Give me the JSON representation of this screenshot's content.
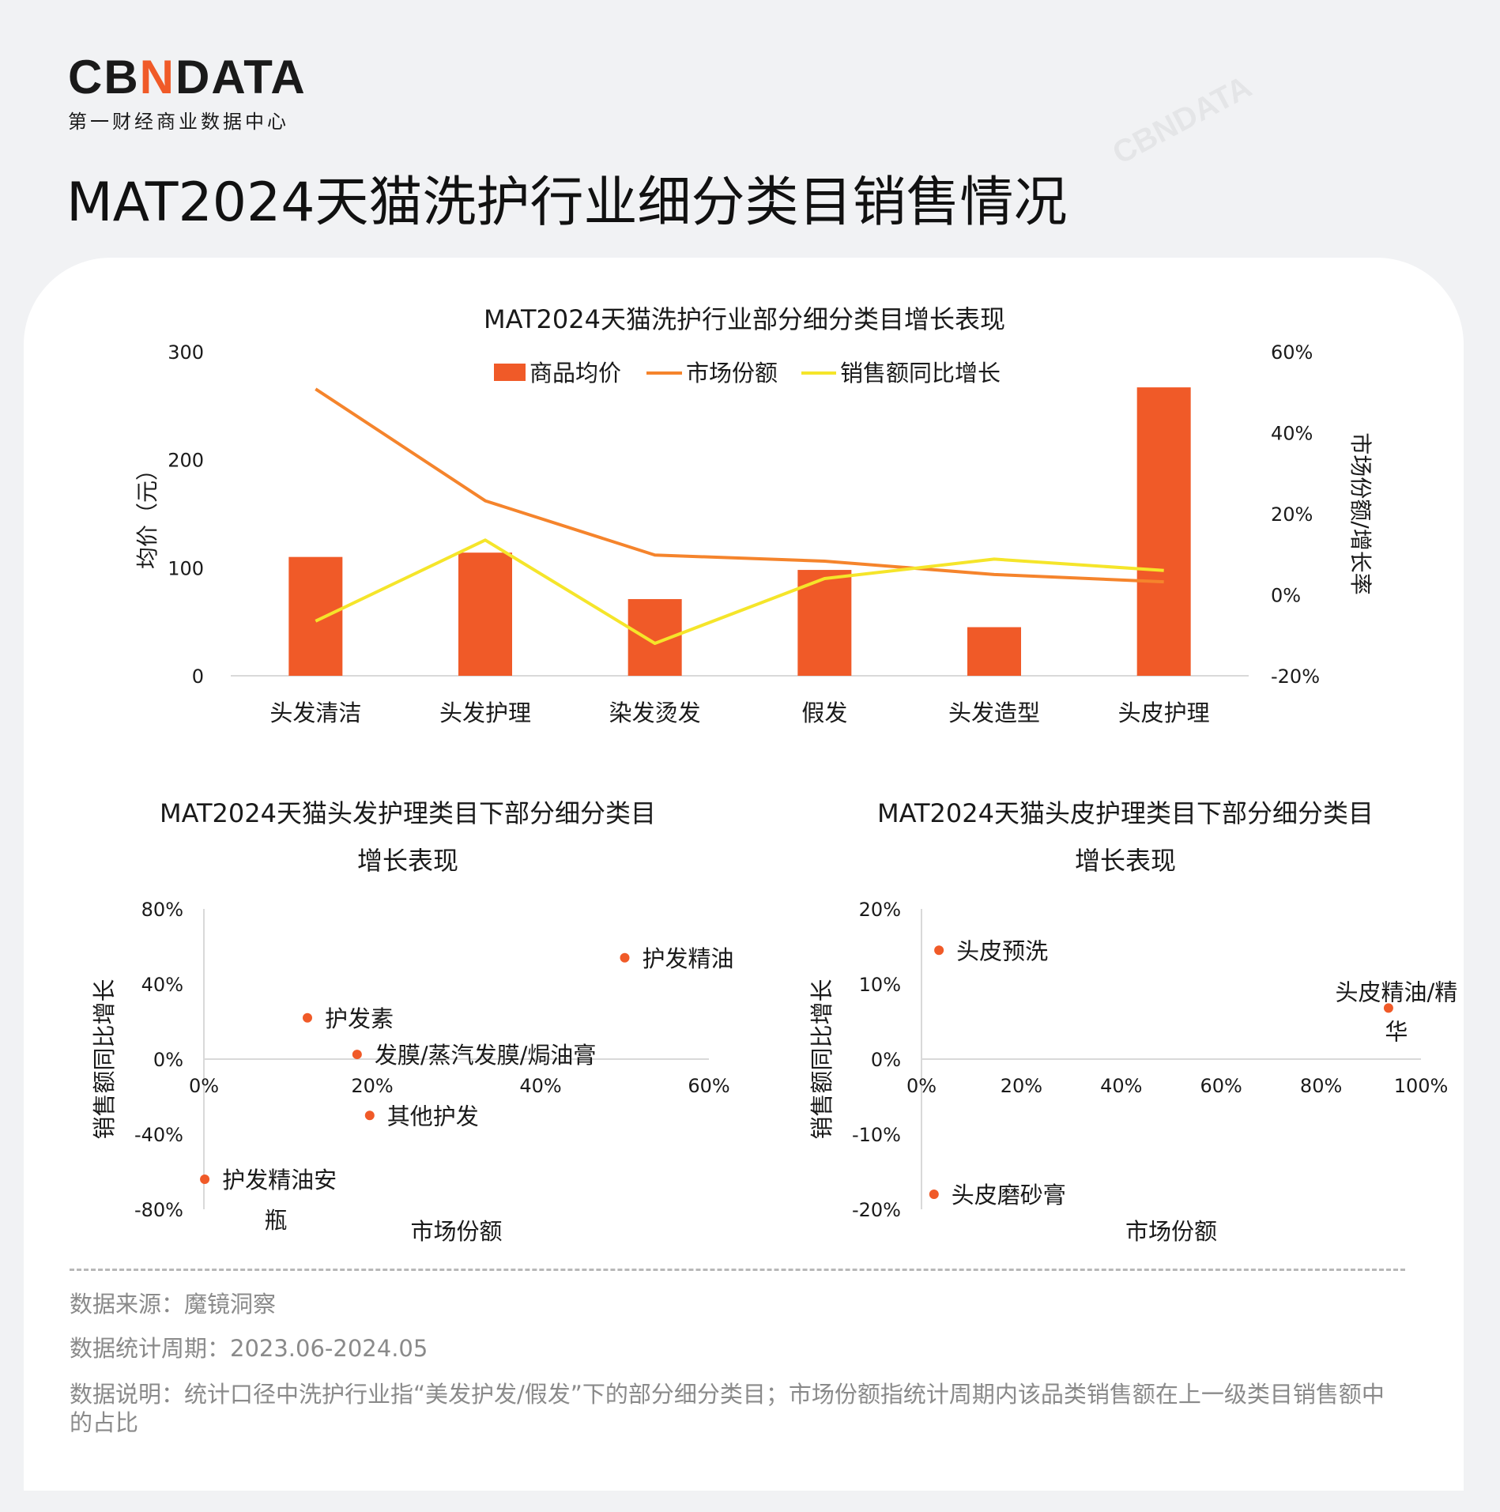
{
  "brand": {
    "logo_pre": "CB",
    "logo_x": "N",
    "logo_post": "DATA",
    "logo_sub": "第一财经商业数据中心",
    "watermark": "CBNDATA"
  },
  "page_title": "MAT2024天猫洗护行业细分类目销售情况",
  "colors": {
    "bar": "#f05a28",
    "share_line": "#f5842c",
    "growth_line": "#f5e52a",
    "point": "#f05a28",
    "axis": "#d9d9d9",
    "text": "#1a1a1a"
  },
  "chart_data": [
    {
      "type": "bar",
      "title": "MAT2024天猫洗护行业部分细分类目增长表现",
      "categories": [
        "头发清洁",
        "头发护理",
        "染发烫发",
        "假发",
        "头发造型",
        "头皮护理"
      ],
      "series": [
        {
          "name": "商品均价",
          "kind": "bar",
          "axis": "left",
          "values": [
            110,
            114,
            71,
            98,
            45,
            267
          ]
        },
        {
          "name": "市场份额",
          "kind": "line",
          "axis": "right",
          "values": [
            50.8,
            23.2,
            9.8,
            8.3,
            5.0,
            3.2
          ]
        },
        {
          "name": "销售额同比增长",
          "kind": "line",
          "axis": "right",
          "values": [
            -6.5,
            13.5,
            -12,
            4,
            8.8,
            6
          ]
        }
      ],
      "ylabel": "均价（元）",
      "ylim": [
        0,
        300
      ],
      "yticks": [
        "0",
        "100",
        "200",
        "300"
      ],
      "y2label": "市场份额/增长率",
      "y2lim": [
        -20,
        60
      ],
      "y2ticks": [
        "-20%",
        "0%",
        "20%",
        "40%",
        "60%"
      ],
      "legend": "top-center"
    },
    {
      "type": "scatter",
      "title_lines": [
        "MAT2024天猫头发护理类目下部分细分类目",
        "增长表现"
      ],
      "xlabel": "市场份额",
      "ylabel": "销售额同比增长",
      "xlim": [
        0,
        60
      ],
      "ylim": [
        -80,
        80
      ],
      "xticks": [
        "0%",
        "20%",
        "40%",
        "60%"
      ],
      "yticks": [
        "80%",
        "40%",
        "0%",
        "-40%",
        "-80%"
      ],
      "points": [
        {
          "label": "护发精油",
          "x": 50,
          "y": 54
        },
        {
          "label": "护发素",
          "x": 12.3,
          "y": 22
        },
        {
          "label": "发膜/蒸汽发膜/焗油膏",
          "x": 18.2,
          "y": 2.5
        },
        {
          "label": "其他护发",
          "x": 19.7,
          "y": -30
        },
        {
          "label": "护发精油安瓶",
          "label_lines": [
            "护发精油安",
            "瓶"
          ],
          "x": 0.1,
          "y": -64
        }
      ]
    },
    {
      "type": "scatter",
      "title_lines": [
        "MAT2024天猫头皮护理类目下部分细分类目",
        "增长表现"
      ],
      "xlabel": "市场份额",
      "ylabel": "销售额同比增长",
      "xlim": [
        0,
        100
      ],
      "ylim": [
        -20,
        20
      ],
      "xticks": [
        "0%",
        "20%",
        "40%",
        "60%",
        "80%",
        "100%"
      ],
      "yticks": [
        "20%",
        "10%",
        "0%",
        "-10%",
        "-20%"
      ],
      "points": [
        {
          "label": "头皮预洗",
          "x": 3.5,
          "y": 14.5
        },
        {
          "label": "头皮精油/精华",
          "label_lines": [
            "头皮精油/精",
            "华"
          ],
          "x": 93.5,
          "y": 6.8
        },
        {
          "label": "头皮磨砂膏",
          "x": 2.5,
          "y": -18
        }
      ]
    }
  ],
  "footer": {
    "source": "数据来源：魔镜洞察",
    "period": "数据统计周期：2023.06-2024.05",
    "note": "数据说明：统计口径中洗护行业指“美发护发/假发”下的部分细分类目；市场份额指统计周期内该品类销售额在上一级类目销售额中的占比"
  }
}
